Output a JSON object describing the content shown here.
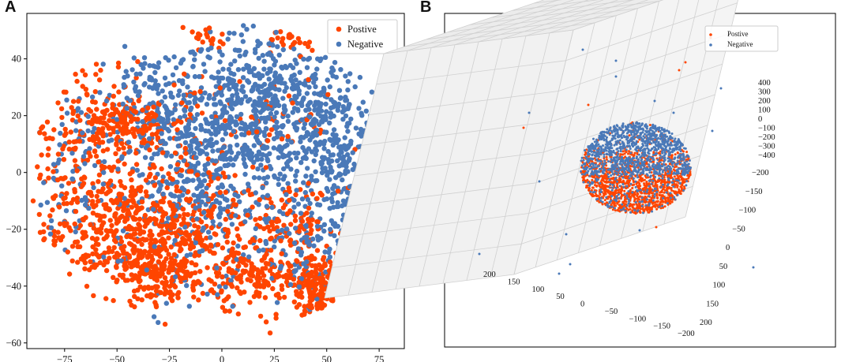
{
  "figure": {
    "label_a": "A",
    "label_b": "B"
  },
  "colors": {
    "positive": "#ff4500",
    "negative": "#4a79b8"
  },
  "chart_data": [
    {
      "type": "scatter",
      "panel": "A",
      "title": "",
      "xlabel": "",
      "ylabel": "",
      "xlim": [
        -93,
        87
      ],
      "ylim": [
        -62,
        56
      ],
      "xticks": [
        -75,
        -50,
        -25,
        0,
        25,
        50,
        75
      ],
      "yticks": [
        -60,
        -40,
        -20,
        0,
        20,
        40
      ],
      "legend": {
        "location": "top-right",
        "entries": [
          "Postive",
          "Negative"
        ]
      },
      "series": [
        {
          "name": "Postive",
          "color": "#ff4500",
          "clusters": [
            {
              "cx": -60,
              "cy": 5,
              "sx": 18,
              "sy": 22,
              "n": 240
            },
            {
              "cx": -45,
              "cy": -22,
              "sx": 20,
              "sy": 10,
              "n": 420
            },
            {
              "cx": -28,
              "cy": -35,
              "sx": 10,
              "sy": 6,
              "n": 160
            },
            {
              "cx": -47,
              "cy": 18,
              "sx": 10,
              "sy": 5,
              "n": 140
            },
            {
              "cx": 15,
              "cy": -37,
              "sx": 10,
              "sy": 5,
              "n": 150
            },
            {
              "cx": 45,
              "cy": -42,
              "sx": 7,
              "sy": 7,
              "n": 180
            },
            {
              "cx": 32,
              "cy": -18,
              "sx": 12,
              "sy": 6,
              "n": 110
            },
            {
              "cx": -10,
              "cy": -15,
              "sx": 14,
              "sy": 12,
              "n": 140
            },
            {
              "cx": 10,
              "cy": 20,
              "sx": 30,
              "sy": 10,
              "n": 70
            },
            {
              "cx": 78,
              "cy": 18,
              "sx": 3,
              "sy": 4,
              "n": 30
            },
            {
              "cx": 35,
              "cy": 48,
              "sx": 6,
              "sy": 3,
              "n": 25
            },
            {
              "cx": -8,
              "cy": 47,
              "sx": 5,
              "sy": 3,
              "n": 20
            }
          ]
        },
        {
          "name": "Negative",
          "color": "#4a79b8",
          "clusters": [
            {
              "cx": 20,
              "cy": 22,
              "sx": 22,
              "sy": 14,
              "n": 560
            },
            {
              "cx": 55,
              "cy": 5,
              "sx": 12,
              "sy": 18,
              "n": 300
            },
            {
              "cx": -5,
              "cy": 0,
              "sx": 20,
              "sy": 18,
              "n": 300
            },
            {
              "cx": -30,
              "cy": 22,
              "sx": 15,
              "sy": 12,
              "n": 170
            },
            {
              "cx": 40,
              "cy": -25,
              "sx": 15,
              "sy": 10,
              "n": 110
            },
            {
              "cx": -75,
              "cy": -5,
              "sx": 10,
              "sy": 15,
              "n": 70
            },
            {
              "cx": -20,
              "cy": -10,
              "sx": 18,
              "sy": 15,
              "n": 90
            }
          ]
        }
      ]
    },
    {
      "type": "scatter",
      "panel": "B",
      "projection": "3d",
      "title": "",
      "x_axis": {
        "ticks": [
          200,
          150,
          100,
          50,
          0,
          -50,
          -100,
          -150,
          -200
        ]
      },
      "y_axis": {
        "ticks": [
          -200,
          -150,
          -100,
          -50,
          0,
          50,
          100,
          150,
          200
        ]
      },
      "z_axis": {
        "ticks": [
          400,
          300,
          200,
          100,
          0,
          -100,
          -200,
          -300,
          -400
        ]
      },
      "legend": {
        "location": "top-right",
        "entries": [
          "Postive",
          "Negative"
        ]
      },
      "series": [
        {
          "name": "Postive",
          "color": "#ff4500",
          "description": "dense sphere cluster, lower half"
        },
        {
          "name": "Negative",
          "color": "#4a79b8",
          "description": "dense sphere cluster, upper half"
        }
      ]
    }
  ]
}
